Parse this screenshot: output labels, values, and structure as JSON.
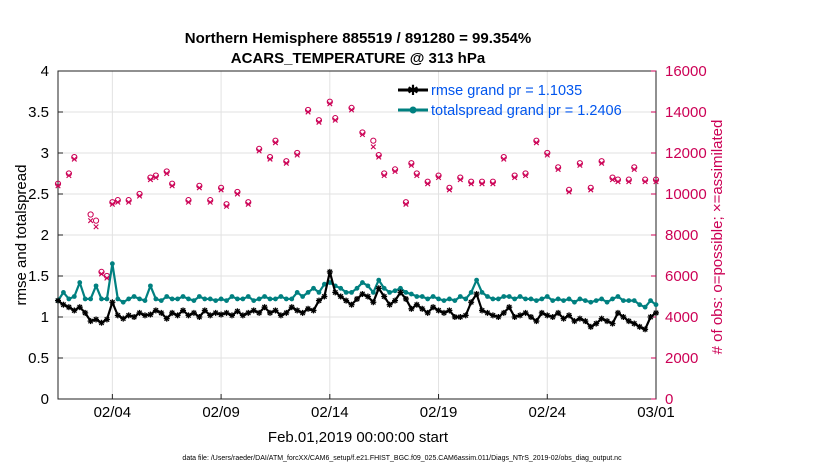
{
  "chart_data": {
    "type": "line",
    "title": "Northern Hemisphere 885519 / 891280 = 99.354%",
    "subtitle": "ACARS_TEMPERATURE @ 313 hPa",
    "xlabel": "Feb.01,2019 00:00:00 start",
    "ylabel": "rmse and totalspread",
    "y2label": "# of obs: o=possible; ×=assimilated",
    "footnote": "data file: /Users/raeder/DAI/ATM_forcXX/CAM6_setup/f.e21.FHIST_BGC.f09_025.CAM6assim.011/Diags_NTrS_2019-02/obs_diag_output.nc",
    "xticks": [
      "02/04",
      "02/09",
      "02/14",
      "02/19",
      "02/24",
      "03/01"
    ],
    "xtick_days": [
      4,
      9,
      14,
      19,
      24,
      29
    ],
    "xlim": [
      1.5,
      29
    ],
    "ylim": [
      0,
      4
    ],
    "yticks": [
      "0",
      "0.5",
      "1",
      "1.5",
      "2",
      "2.5",
      "3",
      "3.5",
      "4"
    ],
    "y2lim": [
      0,
      16000
    ],
    "y2ticks": [
      "0",
      "2000",
      "4000",
      "6000",
      "8000",
      "10000",
      "12000",
      "14000",
      "16000"
    ],
    "grid": true,
    "legend_position": "top-right",
    "colors": {
      "rmse": "#000000",
      "spread": "#008080",
      "obs": "#cc0055",
      "legend_text": "#0055ee"
    },
    "series": [
      {
        "name": "rmse grand pr = 1.1035",
        "axis": "left",
        "marker": "star",
        "x": [
          1.5,
          1.75,
          2.0,
          2.25,
          2.5,
          2.75,
          3.0,
          3.25,
          3.5,
          3.75,
          4.0,
          4.25,
          4.5,
          4.75,
          5.0,
          5.25,
          5.5,
          5.75,
          6.0,
          6.25,
          6.5,
          6.75,
          7.0,
          7.25,
          7.5,
          7.75,
          8.0,
          8.25,
          8.5,
          8.75,
          9.0,
          9.25,
          9.5,
          9.75,
          10.0,
          10.25,
          10.5,
          10.75,
          11.0,
          11.25,
          11.5,
          11.75,
          12.0,
          12.25,
          12.5,
          12.75,
          13.0,
          13.25,
          13.5,
          13.75,
          14.0,
          14.25,
          14.5,
          14.75,
          15.0,
          15.25,
          15.5,
          15.75,
          16.0,
          16.25,
          16.5,
          16.75,
          17.0,
          17.25,
          17.5,
          17.75,
          18.0,
          18.25,
          18.5,
          18.75,
          19.0,
          19.25,
          19.5,
          19.75,
          20.0,
          20.25,
          20.5,
          20.75,
          21.0,
          21.25,
          21.5,
          21.75,
          22.0,
          22.25,
          22.5,
          22.75,
          23.0,
          23.25,
          23.5,
          23.75,
          24.0,
          24.25,
          24.5,
          24.75,
          25.0,
          25.25,
          25.5,
          25.75,
          26.0,
          26.25,
          26.5,
          26.75,
          27.0,
          27.25,
          27.5,
          27.75,
          28.0,
          28.25,
          28.5,
          28.75,
          29.0
        ],
        "values": [
          1.2,
          1.15,
          1.12,
          1.08,
          1.12,
          1.05,
          0.95,
          0.97,
          0.93,
          0.97,
          1.18,
          1.02,
          0.98,
          1.02,
          1.0,
          1.05,
          1.02,
          1.03,
          1.08,
          1.05,
          0.98,
          1.05,
          1.02,
          1.08,
          1.02,
          1.05,
          1.0,
          1.08,
          1.02,
          1.05,
          1.03,
          1.05,
          1.02,
          1.07,
          1.02,
          1.05,
          1.08,
          1.05,
          1.12,
          1.05,
          1.08,
          1.02,
          1.05,
          1.12,
          1.08,
          1.05,
          1.1,
          1.08,
          1.2,
          1.25,
          1.55,
          1.3,
          1.25,
          1.2,
          1.15,
          1.22,
          1.28,
          1.25,
          1.18,
          1.35,
          1.25,
          1.15,
          1.2,
          1.3,
          1.22,
          1.1,
          1.15,
          1.1,
          1.05,
          1.12,
          1.08,
          1.05,
          1.08,
          1.0,
          1.0,
          1.02,
          1.18,
          1.28,
          1.08,
          1.05,
          1.02,
          1.0,
          1.05,
          1.12,
          1.0,
          1.02,
          1.05,
          1.0,
          0.95,
          1.05,
          1.02,
          1.0,
          1.05,
          0.98,
          1.02,
          0.95,
          0.98,
          0.95,
          0.88,
          0.92,
          0.98,
          0.95,
          0.92,
          1.05,
          1.0,
          0.95,
          0.92,
          0.88,
          0.85,
          1.0,
          1.05
        ]
      },
      {
        "name": "totalspread grand pr = 1.2406",
        "axis": "left",
        "marker": "dot",
        "x": [
          1.5,
          1.75,
          2.0,
          2.25,
          2.5,
          2.75,
          3.0,
          3.25,
          3.5,
          3.75,
          4.0,
          4.25,
          4.5,
          4.75,
          5.0,
          5.25,
          5.5,
          5.75,
          6.0,
          6.25,
          6.5,
          6.75,
          7.0,
          7.25,
          7.5,
          7.75,
          8.0,
          8.25,
          8.5,
          8.75,
          9.0,
          9.25,
          9.5,
          9.75,
          10.0,
          10.25,
          10.5,
          10.75,
          11.0,
          11.25,
          11.5,
          11.75,
          12.0,
          12.25,
          12.5,
          12.75,
          13.0,
          13.25,
          13.5,
          13.75,
          14.0,
          14.25,
          14.5,
          14.75,
          15.0,
          15.25,
          15.5,
          15.75,
          16.0,
          16.25,
          16.5,
          16.75,
          17.0,
          17.25,
          17.5,
          17.75,
          18.0,
          18.25,
          18.5,
          18.75,
          19.0,
          19.25,
          19.5,
          19.75,
          20.0,
          20.25,
          20.5,
          20.75,
          21.0,
          21.25,
          21.5,
          21.75,
          22.0,
          22.25,
          22.5,
          22.75,
          23.0,
          23.25,
          23.5,
          23.75,
          24.0,
          24.25,
          24.5,
          24.75,
          25.0,
          25.25,
          25.5,
          25.75,
          26.0,
          26.25,
          26.5,
          26.75,
          27.0,
          27.25,
          27.5,
          27.75,
          28.0,
          28.25,
          28.5,
          28.75,
          29.0
        ],
        "values": [
          1.2,
          1.3,
          1.22,
          1.25,
          1.42,
          1.22,
          1.22,
          1.38,
          1.22,
          1.22,
          1.65,
          1.22,
          1.18,
          1.22,
          1.25,
          1.22,
          1.2,
          1.38,
          1.22,
          1.2,
          1.25,
          1.22,
          1.22,
          1.25,
          1.22,
          1.2,
          1.25,
          1.22,
          1.22,
          1.2,
          1.22,
          1.2,
          1.25,
          1.22,
          1.22,
          1.25,
          1.2,
          1.22,
          1.25,
          1.22,
          1.22,
          1.25,
          1.22,
          1.22,
          1.3,
          1.25,
          1.3,
          1.35,
          1.3,
          1.4,
          1.42,
          1.38,
          1.35,
          1.3,
          1.3,
          1.35,
          1.42,
          1.38,
          1.3,
          1.45,
          1.35,
          1.3,
          1.32,
          1.35,
          1.3,
          1.28,
          1.25,
          1.25,
          1.22,
          1.25,
          1.22,
          1.2,
          1.22,
          1.2,
          1.25,
          1.22,
          1.3,
          1.45,
          1.3,
          1.25,
          1.22,
          1.22,
          1.25,
          1.25,
          1.22,
          1.25,
          1.22,
          1.22,
          1.2,
          1.22,
          1.25,
          1.2,
          1.22,
          1.2,
          1.22,
          1.18,
          1.22,
          1.2,
          1.18,
          1.2,
          1.22,
          1.18,
          1.22,
          1.25,
          1.2,
          1.2,
          1.2,
          1.15,
          1.12,
          1.2,
          1.15
        ]
      },
      {
        "name": "possible",
        "axis": "right",
        "marker": "circle",
        "x": [
          1.5,
          2.0,
          2.25,
          3.0,
          3.25,
          3.5,
          3.75,
          4.0,
          4.25,
          4.75,
          5.25,
          5.75,
          6.0,
          6.5,
          6.75,
          7.5,
          8.0,
          8.5,
          9.0,
          9.25,
          9.75,
          10.25,
          10.75,
          11.25,
          11.5,
          12.0,
          12.5,
          13.0,
          13.5,
          14.0,
          14.25,
          15.0,
          15.5,
          16.0,
          16.25,
          16.5,
          17.0,
          17.5,
          17.75,
          18.0,
          18.5,
          19.0,
          19.5,
          20.0,
          20.5,
          21.0,
          21.5,
          22.0,
          22.5,
          23.0,
          23.5,
          24.0,
          24.5,
          25.0,
          25.5,
          26.0,
          26.5,
          27.0,
          27.25,
          27.75,
          28.0,
          28.5,
          29.0
        ],
        "values": [
          10500,
          11000,
          11800,
          9000,
          8700,
          6200,
          6000,
          9600,
          9700,
          9700,
          10000,
          10800,
          10900,
          11100,
          10500,
          9700,
          10400,
          9700,
          10300,
          9500,
          10100,
          9600,
          12200,
          11800,
          12600,
          11600,
          12000,
          14100,
          13600,
          14500,
          13700,
          14200,
          13000,
          12600,
          11900,
          11000,
          11200,
          9600,
          11500,
          11000,
          10600,
          10900,
          10300,
          10800,
          10600,
          10600,
          10600,
          11800,
          10900,
          11000,
          12600,
          12000,
          11300,
          10200,
          11500,
          10300,
          11600,
          10800,
          10700,
          10700,
          11300,
          10700,
          10700
        ]
      },
      {
        "name": "assimilated",
        "axis": "right",
        "marker": "x",
        "x": [
          1.5,
          2.0,
          2.25,
          3.0,
          3.25,
          3.5,
          3.75,
          4.0,
          4.25,
          4.75,
          5.25,
          5.75,
          6.0,
          6.5,
          6.75,
          7.5,
          8.0,
          8.5,
          9.0,
          9.25,
          9.75,
          10.25,
          10.75,
          11.25,
          11.5,
          12.0,
          12.5,
          13.0,
          13.5,
          14.0,
          14.25,
          15.0,
          15.5,
          16.0,
          16.25,
          16.5,
          17.0,
          17.5,
          17.75,
          18.0,
          18.5,
          19.0,
          19.5,
          20.0,
          20.5,
          21.0,
          21.5,
          22.0,
          22.5,
          23.0,
          23.5,
          24.0,
          24.5,
          25.0,
          25.5,
          26.0,
          26.5,
          27.0,
          27.25,
          27.75,
          28.0,
          28.5,
          29.0
        ],
        "values": [
          10400,
          10900,
          11700,
          8700,
          8400,
          6100,
          5900,
          9500,
          9600,
          9600,
          9900,
          10700,
          10800,
          11000,
          10400,
          9600,
          10300,
          9600,
          10200,
          9400,
          10000,
          9500,
          12100,
          11700,
          12500,
          11500,
          11900,
          14000,
          13500,
          14400,
          13600,
          14100,
          12900,
          12300,
          11800,
          10900,
          11100,
          9500,
          11400,
          10900,
          10500,
          10800,
          10200,
          10700,
          10500,
          10500,
          10500,
          11700,
          10800,
          10900,
          12500,
          11900,
          11200,
          10100,
          11400,
          10200,
          11500,
          10700,
          10600,
          10600,
          11200,
          10600,
          10600
        ]
      }
    ]
  }
}
